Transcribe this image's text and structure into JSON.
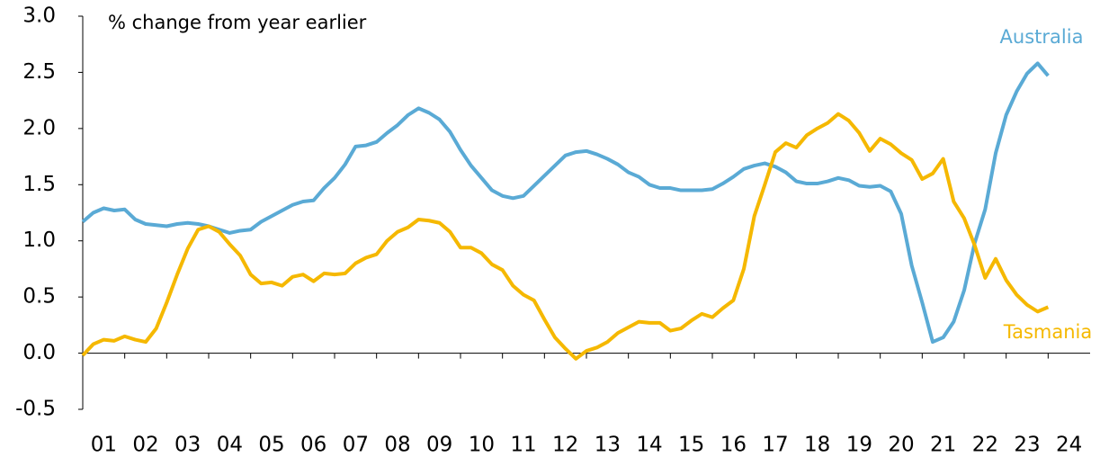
{
  "chart_data": {
    "type": "line",
    "annotation": "% change from year earlier",
    "x": [
      2001,
      2001.25,
      2001.5,
      2001.75,
      2002,
      2002.25,
      2002.5,
      2002.75,
      2003,
      2003.25,
      2003.5,
      2003.75,
      2004,
      2004.25,
      2004.5,
      2004.75,
      2005,
      2005.25,
      2005.5,
      2005.75,
      2006,
      2006.25,
      2006.5,
      2006.75,
      2007,
      2007.25,
      2007.5,
      2007.75,
      2008,
      2008.25,
      2008.5,
      2008.75,
      2009,
      2009.25,
      2009.5,
      2009.75,
      2010,
      2010.25,
      2010.5,
      2010.75,
      2011,
      2011.25,
      2011.5,
      2011.75,
      2012,
      2012.25,
      2012.5,
      2012.75,
      2013,
      2013.25,
      2013.5,
      2013.75,
      2014,
      2014.25,
      2014.5,
      2014.75,
      2015,
      2015.25,
      2015.5,
      2015.75,
      2016,
      2016.25,
      2016.5,
      2016.75,
      2017,
      2017.25,
      2017.5,
      2017.75,
      2018,
      2018.25,
      2018.5,
      2018.75,
      2019,
      2019.25,
      2019.5,
      2019.75,
      2020,
      2020.25,
      2020.5,
      2020.75,
      2021,
      2021.25,
      2021.5,
      2021.75,
      2022,
      2022.25,
      2022.5,
      2022.75,
      2023,
      2023.25,
      2023.5,
      2023.75,
      2024
    ],
    "series": [
      {
        "name": "Australia",
        "color": "#5aaad5",
        "values": [
          1.17,
          1.25,
          1.29,
          1.27,
          1.28,
          1.19,
          1.15,
          1.14,
          1.13,
          1.15,
          1.16,
          1.15,
          1.13,
          1.1,
          1.07,
          1.09,
          1.1,
          1.17,
          1.22,
          1.27,
          1.32,
          1.35,
          1.36,
          1.47,
          1.56,
          1.68,
          1.84,
          1.85,
          1.88,
          1.96,
          2.03,
          2.12,
          2.18,
          2.14,
          2.08,
          1.97,
          1.81,
          1.67,
          1.56,
          1.45,
          1.4,
          1.38,
          1.4,
          1.49,
          1.58,
          1.67,
          1.76,
          1.79,
          1.8,
          1.77,
          1.73,
          1.68,
          1.61,
          1.57,
          1.5,
          1.47,
          1.47,
          1.45,
          1.45,
          1.45,
          1.46,
          1.51,
          1.57,
          1.64,
          1.67,
          1.69,
          1.66,
          1.61,
          1.53,
          1.51,
          1.51,
          1.53,
          1.56,
          1.54,
          1.49,
          1.48,
          1.49,
          1.44,
          1.24,
          0.78,
          0.45,
          0.1,
          0.14,
          0.28,
          0.56,
          0.98,
          1.28,
          1.78,
          2.12,
          2.33,
          2.49,
          2.58,
          2.47
        ]
      },
      {
        "name": "Tasmania",
        "color": "#f5b800",
        "values": [
          -0.02,
          0.08,
          0.12,
          0.11,
          0.15,
          0.12,
          0.1,
          0.22,
          0.45,
          0.7,
          0.93,
          1.1,
          1.13,
          1.08,
          0.97,
          0.87,
          0.7,
          0.62,
          0.63,
          0.6,
          0.68,
          0.7,
          0.64,
          0.71,
          0.7,
          0.71,
          0.8,
          0.85,
          0.88,
          1.0,
          1.08,
          1.12,
          1.19,
          1.18,
          1.16,
          1.08,
          0.94,
          0.94,
          0.89,
          0.79,
          0.74,
          0.6,
          0.52,
          0.47,
          0.3,
          0.14,
          0.04,
          -0.05,
          0.02,
          0.05,
          0.1,
          0.18,
          0.23,
          0.28,
          0.27,
          0.27,
          0.2,
          0.22,
          0.29,
          0.35,
          0.32,
          0.4,
          0.47,
          0.75,
          1.22,
          1.5,
          1.79,
          1.87,
          1.83,
          1.94,
          2.0,
          2.05,
          2.13,
          2.07,
          1.96,
          1.8,
          1.91,
          1.86,
          1.78,
          1.72,
          1.55,
          1.6,
          1.73,
          1.35,
          1.2,
          0.96,
          0.67,
          0.84,
          0.65,
          0.52,
          0.43,
          0.37,
          0.41
        ]
      }
    ],
    "xlim": [
      2001,
      2025
    ],
    "xticks": [
      {
        "value": 2001,
        "label": "01"
      },
      {
        "value": 2002,
        "label": "02"
      },
      {
        "value": 2003,
        "label": "03"
      },
      {
        "value": 2004,
        "label": "04"
      },
      {
        "value": 2005,
        "label": "05"
      },
      {
        "value": 2006,
        "label": "06"
      },
      {
        "value": 2007,
        "label": "07"
      },
      {
        "value": 2008,
        "label": "08"
      },
      {
        "value": 2009,
        "label": "09"
      },
      {
        "value": 2010,
        "label": "10"
      },
      {
        "value": 2011,
        "label": "11"
      },
      {
        "value": 2012,
        "label": "12"
      },
      {
        "value": 2013,
        "label": "13"
      },
      {
        "value": 2014,
        "label": "14"
      },
      {
        "value": 2015,
        "label": "15"
      },
      {
        "value": 2016,
        "label": "16"
      },
      {
        "value": 2017,
        "label": "17"
      },
      {
        "value": 2018,
        "label": "18"
      },
      {
        "value": 2019,
        "label": "19"
      },
      {
        "value": 2020,
        "label": "20"
      },
      {
        "value": 2021,
        "label": "21"
      },
      {
        "value": 2022,
        "label": "22"
      },
      {
        "value": 2023,
        "label": "23"
      },
      {
        "value": 2024,
        "label": "24"
      }
    ],
    "ylim": [
      -0.5,
      3.0
    ],
    "yticks": [
      {
        "value": -0.5,
        "label": "-0.5"
      },
      {
        "value": 0,
        "label": "0.0"
      },
      {
        "value": 0.5,
        "label": "0.5"
      },
      {
        "value": 1,
        "label": "1.0"
      },
      {
        "value": 1.5,
        "label": "1.5"
      },
      {
        "value": 2,
        "label": "2.0"
      },
      {
        "value": 2.5,
        "label": "2.5"
      },
      {
        "value": 3,
        "label": "3.0"
      }
    ],
    "grid": false
  }
}
